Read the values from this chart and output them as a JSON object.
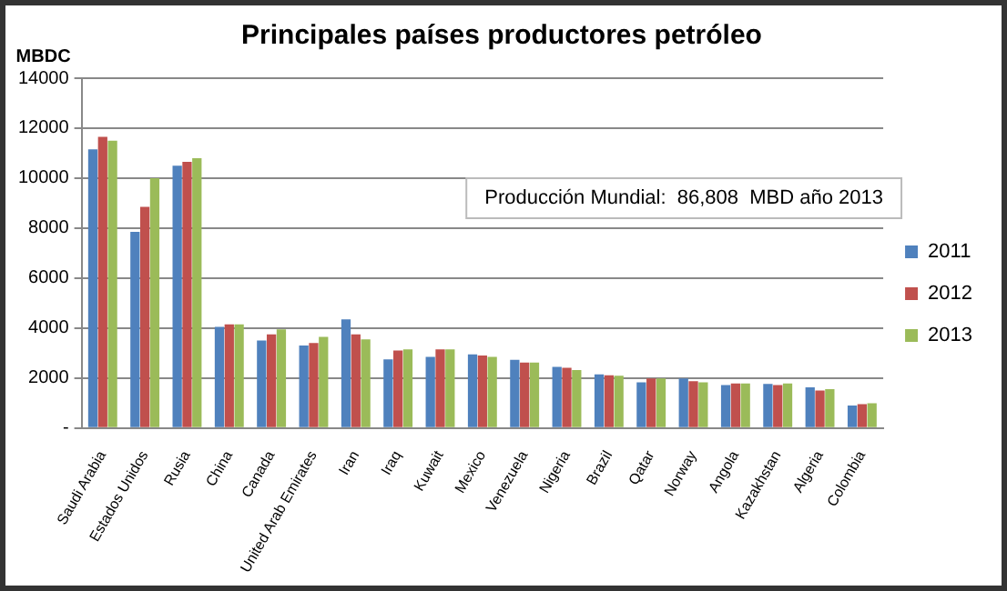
{
  "chart_data": {
    "type": "bar",
    "title": "Principales países productores petróleo",
    "ylabel": "MBDC",
    "categories": [
      "Saudi Arabia",
      "Estados Unidos",
      "Rusia",
      "China",
      "Canada",
      "United Arab Emirates",
      "Iran",
      "Iraq",
      "Kuwait",
      "Mexico",
      "Venezuela",
      "Nigeria",
      "Brazil",
      "Qatar",
      "Norway",
      "Angola",
      "Kazakhstan",
      "Algeria",
      "Colombia"
    ],
    "series": [
      {
        "name": "2011",
        "color": "#4f81bd",
        "values": [
          11150,
          7850,
          10500,
          4050,
          3500,
          3300,
          4350,
          2750,
          2850,
          2950,
          2730,
          2450,
          2150,
          1830,
          1980,
          1720,
          1760,
          1630,
          900
        ]
      },
      {
        "name": "2012",
        "color": "#c0504d",
        "values": [
          11650,
          8850,
          10650,
          4150,
          3750,
          3400,
          3750,
          3100,
          3150,
          2900,
          2620,
          2410,
          2110,
          1980,
          1870,
          1780,
          1720,
          1500,
          950
        ]
      },
      {
        "name": "2013",
        "color": "#9bbb59",
        "values": [
          11500,
          10000,
          10800,
          4150,
          3950,
          3650,
          3550,
          3150,
          3150,
          2850,
          2620,
          2320,
          2090,
          1980,
          1830,
          1780,
          1780,
          1550,
          990
        ]
      }
    ],
    "ylim": [
      0,
      14000
    ],
    "yticks": [
      {
        "value": 0,
        "label": "-"
      },
      2000,
      4000,
      6000,
      8000,
      10000,
      12000,
      14000
    ],
    "grid": "y",
    "legend": "right",
    "annotations": [
      "Producción Mundial:  86,808  MBD año 2013"
    ]
  }
}
